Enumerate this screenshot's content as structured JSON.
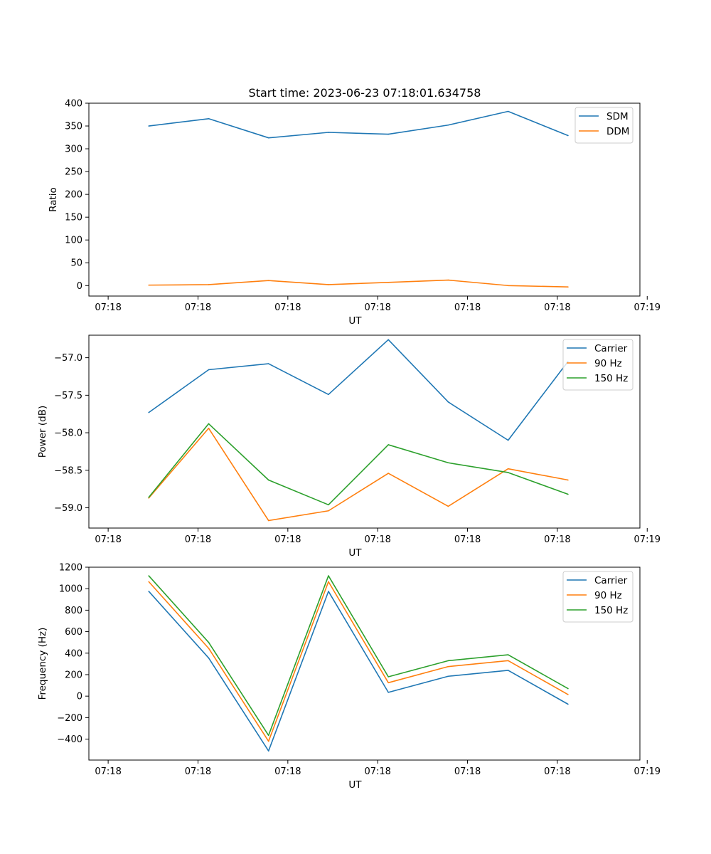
{
  "figure": {
    "title": "Start time: 2023-06-23 07:18:01.634758"
  },
  "colors": {
    "blue": "#1f77b4",
    "orange": "#ff7f0e",
    "green": "#2ca02c"
  },
  "chart_data": [
    {
      "type": "line",
      "title": "Start time: 2023-06-23 07:18:01.634758",
      "xlabel": "UT",
      "ylabel": "Ratio",
      "x_tick_labels": [
        "07:18",
        "07:18",
        "07:18",
        "07:18",
        "07:18",
        "07:18",
        "07:19"
      ],
      "x": [
        1,
        2,
        3,
        4,
        5,
        6,
        7,
        8
      ],
      "xlim": [
        0.0,
        9.2
      ],
      "ylim": [
        -23,
        400
      ],
      "y_ticks": [
        0,
        50,
        100,
        150,
        200,
        250,
        300,
        350,
        400
      ],
      "legend_position": "top-right",
      "series": [
        {
          "name": "SDM",
          "color": "#1f77b4",
          "values": [
            350,
            366,
            324,
            336,
            332,
            352,
            382,
            329
          ]
        },
        {
          "name": "DDM",
          "color": "#ff7f0e",
          "values": [
            1,
            2,
            11,
            2,
            7,
            12,
            0,
            -3
          ]
        }
      ]
    },
    {
      "type": "line",
      "xlabel": "UT",
      "ylabel": "Power (dB)",
      "x_tick_labels": [
        "07:18",
        "07:18",
        "07:18",
        "07:18",
        "07:18",
        "07:18",
        "07:19"
      ],
      "x": [
        1,
        2,
        3,
        4,
        5,
        6,
        7,
        8
      ],
      "xlim": [
        0.0,
        9.2
      ],
      "ylim": [
        -59.27,
        -56.7
      ],
      "y_ticks": [
        -59.0,
        -58.5,
        -58.0,
        -57.5,
        -57.0
      ],
      "y_tick_labels": [
        "−59.0",
        "−58.5",
        "−58.0",
        "−57.5",
        "−57.0"
      ],
      "legend_position": "top-right",
      "series": [
        {
          "name": "Carrier",
          "color": "#1f77b4",
          "values": [
            -57.73,
            -57.16,
            -57.08,
            -57.49,
            -56.76,
            -57.59,
            -58.1,
            -57.05
          ]
        },
        {
          "name": "90 Hz",
          "color": "#ff7f0e",
          "values": [
            -58.87,
            -57.94,
            -59.17,
            -59.04,
            -58.54,
            -58.98,
            -58.48,
            -58.63
          ]
        },
        {
          "name": "150 Hz",
          "color": "#2ca02c",
          "values": [
            -58.86,
            -57.88,
            -58.63,
            -58.96,
            -58.16,
            -58.4,
            -58.53,
            -58.82
          ]
        }
      ]
    },
    {
      "type": "line",
      "xlabel": "UT",
      "ylabel": "Frequency (Hz)",
      "x_tick_labels": [
        "07:18",
        "07:18",
        "07:18",
        "07:18",
        "07:18",
        "07:18",
        "07:19"
      ],
      "x": [
        1,
        2,
        3,
        4,
        5,
        6,
        7,
        8
      ],
      "xlim": [
        0.0,
        9.2
      ],
      "ylim": [
        -595,
        1200
      ],
      "y_ticks": [
        -400,
        -200,
        0,
        200,
        400,
        600,
        800,
        1000,
        1200
      ],
      "y_tick_labels": [
        "−400",
        "−200",
        "0",
        "200",
        "400",
        "600",
        "800",
        "1000",
        "1200"
      ],
      "legend_position": "top-right",
      "series": [
        {
          "name": "Carrier",
          "color": "#1f77b4",
          "values": [
            975,
            355,
            -510,
            975,
            35,
            185,
            240,
            -75
          ]
        },
        {
          "name": "90 Hz",
          "color": "#ff7f0e",
          "values": [
            1065,
            445,
            -420,
            1065,
            125,
            275,
            330,
            15
          ]
        },
        {
          "name": "150 Hz",
          "color": "#2ca02c",
          "values": [
            1120,
            500,
            -365,
            1120,
            180,
            330,
            385,
            70
          ]
        }
      ]
    }
  ]
}
